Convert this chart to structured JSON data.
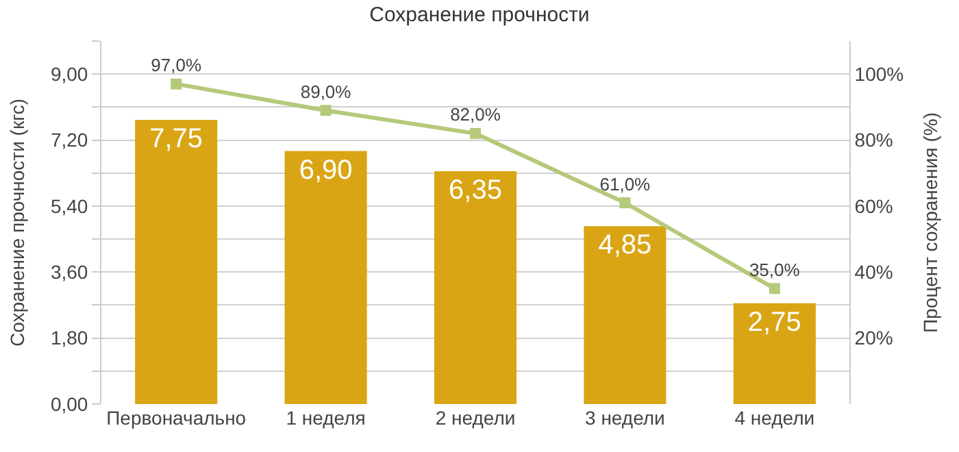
{
  "chart_data": {
    "type": "bar",
    "title": "Сохранение прочности",
    "categories": [
      "Первоначально",
      "1 неделя",
      "2 недели",
      "3 недели",
      "4 недели"
    ],
    "ylabel": "Сохранение прочности (кгс)",
    "y2label": "Процент сохранения (%)",
    "series": [
      {
        "color": "#d9a514",
        "values": [
          7.75,
          6.9,
          6.35,
          4.85,
          2.75
        ],
        "value_labels": [
          "7,75",
          "6,90",
          "6,35",
          "4,85",
          "2,75"
        ]
      },
      {
        "type": "line",
        "axis": "y2",
        "color": "#b5c97a",
        "marker": "square",
        "values": [
          97,
          89,
          82,
          61,
          35
        ],
        "value_labels": [
          "97,0%",
          "89,0%",
          "82,0%",
          "61,0%",
          "35,0%"
        ]
      }
    ],
    "ylim": [
      0,
      9.9
    ],
    "yticks": [
      {
        "value": 0,
        "label": "0,00"
      },
      {
        "value": 0.9,
        "label": null
      },
      {
        "value": 1.8,
        "label": "1,80"
      },
      {
        "value": 2.7,
        "label": null
      },
      {
        "value": 3.6,
        "label": "3,60"
      },
      {
        "value": 4.5,
        "label": null
      },
      {
        "value": 5.4,
        "label": "5,40"
      },
      {
        "value": 6.3,
        "label": null
      },
      {
        "value": 7.2,
        "label": "7,20"
      },
      {
        "value": 8.1,
        "label": null
      },
      {
        "value": 9.0,
        "label": "9,00"
      },
      {
        "value": 9.9,
        "label": null
      }
    ],
    "y2lim": [
      0,
      110
    ],
    "y2ticks": [
      {
        "value": 20,
        "label": "20%"
      },
      {
        "value": 40,
        "label": "40%"
      },
      {
        "value": 60,
        "label": "60%"
      },
      {
        "value": 80,
        "label": "80%"
      },
      {
        "value": 100,
        "label": "100%"
      }
    ],
    "grid": "y"
  }
}
